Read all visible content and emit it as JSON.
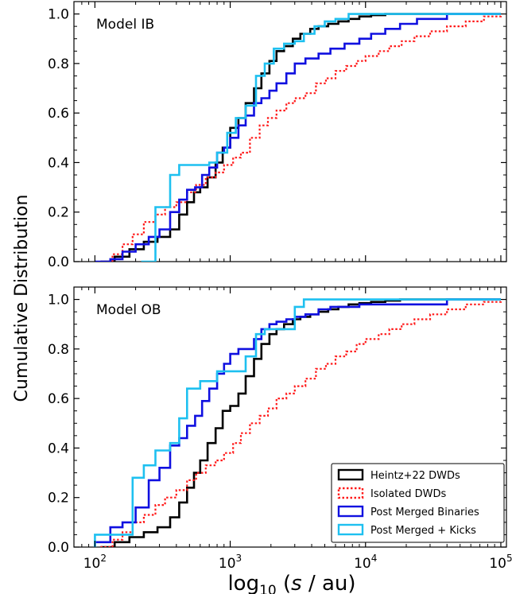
{
  "chart_data": {
    "type": "line",
    "ylabel": "Cumulative Distribution",
    "xlabel_parts": {
      "pre": "log",
      "sub": "10",
      "open": " (",
      "var": "s",
      "post": " / au)"
    },
    "x_scale": "log",
    "xlim": [
      70,
      110000
    ],
    "ylim": [
      0,
      1.05
    ],
    "x_ticks": [
      {
        "value": 100,
        "base": "10",
        "exp": "2"
      },
      {
        "value": 1000,
        "base": "10",
        "exp": "3"
      },
      {
        "value": 10000,
        "base": "10",
        "exp": "4"
      },
      {
        "value": 100000,
        "base": "10",
        "exp": "5"
      }
    ],
    "y_ticks": [
      0.0,
      0.2,
      0.4,
      0.6,
      0.8,
      1.0
    ],
    "y_tick_labels": [
      "0.0",
      "0.2",
      "0.4",
      "0.6",
      "0.8",
      "1.0"
    ],
    "legend": [
      {
        "label": "Heintz+22 DWDs",
        "color": "#000000",
        "dash": "solid"
      },
      {
        "label": "Isolated DWDs",
        "color": "#ff1a1a",
        "dash": "dotted"
      },
      {
        "label": "Post Merged Binaries",
        "color": "#1010e0",
        "dash": "solid"
      },
      {
        "label": "Post Merged + Kicks",
        "color": "#1ec0f0",
        "dash": "solid"
      }
    ],
    "panels": [
      {
        "label": "Model IB",
        "series": [
          {
            "name": "Heintz+22 DWDs",
            "x": [
              110,
              140,
              180,
              230,
              290,
              360,
              420,
              480,
              540,
              600,
              680,
              780,
              880,
              1000,
              1150,
              1300,
              1500,
              1700,
              1950,
              2200,
              2500,
              2900,
              3300,
              3900,
              4500,
              5300,
              6300,
              7500,
              9000,
              11000,
              14000,
              18000,
              25000,
              40000,
              100000
            ],
            "y": [
              0.0,
              0.02,
              0.05,
              0.08,
              0.1,
              0.13,
              0.19,
              0.24,
              0.28,
              0.3,
              0.34,
              0.4,
              0.46,
              0.54,
              0.58,
              0.64,
              0.7,
              0.76,
              0.81,
              0.85,
              0.87,
              0.9,
              0.92,
              0.94,
              0.95,
              0.96,
              0.97,
              0.98,
              0.99,
              0.995,
              1.0,
              1.0,
              1.0,
              1.0,
              1.0
            ]
          },
          {
            "name": "Isolated DWDs",
            "x": [
              110,
              135,
              160,
              190,
              230,
              280,
              330,
              400,
              480,
              560,
              660,
              780,
              900,
              1050,
              1200,
              1400,
              1650,
              1900,
              2200,
              2600,
              3000,
              3600,
              4300,
              5100,
              6000,
              7200,
              8600,
              10000,
              12500,
              15000,
              18500,
              23000,
              30000,
              40000,
              55000,
              75000,
              100000
            ],
            "y": [
              0.0,
              0.03,
              0.07,
              0.11,
              0.16,
              0.19,
              0.22,
              0.24,
              0.28,
              0.31,
              0.34,
              0.36,
              0.39,
              0.42,
              0.44,
              0.5,
              0.55,
              0.58,
              0.61,
              0.64,
              0.66,
              0.68,
              0.72,
              0.74,
              0.77,
              0.79,
              0.81,
              0.83,
              0.85,
              0.87,
              0.89,
              0.91,
              0.93,
              0.95,
              0.97,
              0.99,
              1.0
            ]
          },
          {
            "name": "Post Merged Binaries",
            "x": [
              100,
              130,
              160,
              200,
              250,
              300,
              360,
              420,
              480,
              550,
              620,
              700,
              800,
              900,
              1000,
              1150,
              1300,
              1500,
              1700,
              1950,
              2200,
              2600,
              3000,
              3600,
              4500,
              5500,
              7000,
              9000,
              11000,
              14000,
              18000,
              24000,
              40000,
              100000
            ],
            "y": [
              0.0,
              0.01,
              0.04,
              0.07,
              0.1,
              0.13,
              0.2,
              0.25,
              0.29,
              0.3,
              0.35,
              0.38,
              0.44,
              0.46,
              0.5,
              0.55,
              0.59,
              0.64,
              0.66,
              0.69,
              0.72,
              0.76,
              0.8,
              0.82,
              0.84,
              0.86,
              0.88,
              0.9,
              0.92,
              0.94,
              0.96,
              0.98,
              1.0,
              1.0
            ]
          },
          {
            "name": "Post Merged + Kicks",
            "x": [
              220,
              280,
              360,
              420,
              480,
              600,
              700,
              800,
              950,
              1100,
              1300,
              1550,
              1800,
              2100,
              2500,
              3000,
              3500,
              4200,
              5000,
              6000,
              7500,
              9000,
              12000,
              18000,
              30000,
              100000
            ],
            "y": [
              0.0,
              0.22,
              0.35,
              0.39,
              0.39,
              0.39,
              0.4,
              0.44,
              0.52,
              0.58,
              0.63,
              0.75,
              0.8,
              0.86,
              0.88,
              0.89,
              0.92,
              0.95,
              0.97,
              0.98,
              1.0,
              1.0,
              1.0,
              1.0,
              1.0,
              1.0
            ]
          }
        ]
      },
      {
        "label": "Model OB",
        "series": [
          {
            "name": "Heintz+22 DWDs",
            "x": [
              110,
              140,
              180,
              230,
              290,
              360,
              420,
              480,
              540,
              600,
              680,
              780,
              880,
              1000,
              1150,
              1300,
              1500,
              1700,
              1950,
              2200,
              2500,
              2900,
              3300,
              3900,
              4500,
              5300,
              6300,
              7500,
              9000,
              11000,
              14000,
              18000,
              25000,
              40000,
              100000
            ],
            "y": [
              0.0,
              0.02,
              0.04,
              0.06,
              0.08,
              0.12,
              0.18,
              0.24,
              0.3,
              0.35,
              0.42,
              0.48,
              0.55,
              0.57,
              0.62,
              0.69,
              0.76,
              0.82,
              0.86,
              0.88,
              0.9,
              0.92,
              0.93,
              0.94,
              0.95,
              0.96,
              0.97,
              0.98,
              0.985,
              0.99,
              0.995,
              1.0,
              1.0,
              1.0,
              1.0
            ]
          },
          {
            "name": "Isolated DWDs",
            "x": [
              110,
              135,
              160,
              190,
              230,
              280,
              330,
              400,
              480,
              560,
              660,
              780,
              900,
              1050,
              1200,
              1400,
              1650,
              1900,
              2200,
              2600,
              3000,
              3600,
              4300,
              5100,
              6000,
              7200,
              8600,
              10000,
              12500,
              15000,
              18500,
              23000,
              30000,
              40000,
              55000,
              75000,
              100000
            ],
            "y": [
              0.0,
              0.03,
              0.06,
              0.1,
              0.13,
              0.17,
              0.2,
              0.23,
              0.27,
              0.3,
              0.33,
              0.35,
              0.38,
              0.42,
              0.46,
              0.5,
              0.53,
              0.56,
              0.6,
              0.62,
              0.65,
              0.68,
              0.72,
              0.74,
              0.77,
              0.79,
              0.82,
              0.84,
              0.86,
              0.88,
              0.9,
              0.92,
              0.94,
              0.96,
              0.98,
              0.99,
              1.0
            ]
          },
          {
            "name": "Post Merged Binaries",
            "x": [
              100,
              130,
              160,
              200,
              250,
              300,
              360,
              420,
              480,
              550,
              620,
              700,
              800,
              900,
              1000,
              1150,
              1300,
              1500,
              1700,
              1950,
              2200,
              2600,
              3000,
              3600,
              4500,
              5500,
              7000,
              9000,
              11000,
              14000,
              18000,
              24000,
              40000,
              100000
            ],
            "y": [
              0.02,
              0.08,
              0.1,
              0.16,
              0.27,
              0.32,
              0.41,
              0.44,
              0.49,
              0.53,
              0.59,
              0.64,
              0.7,
              0.74,
              0.78,
              0.8,
              0.8,
              0.84,
              0.88,
              0.9,
              0.91,
              0.92,
              0.93,
              0.94,
              0.96,
              0.97,
              0.97,
              0.98,
              0.98,
              0.98,
              0.98,
              0.98,
              1.0,
              1.0
            ]
          },
          {
            "name": "Post Merged + Kicks",
            "x": [
              100,
              190,
              230,
              280,
              360,
              420,
              480,
              600,
              700,
              800,
              950,
              1100,
              1300,
              1550,
              1800,
              2100,
              2500,
              3000,
              3500,
              4000,
              5000,
              6000,
              7500,
              9000,
              12000,
              18000,
              30000,
              100000
            ],
            "y": [
              0.05,
              0.28,
              0.33,
              0.39,
              0.42,
              0.52,
              0.64,
              0.67,
              0.67,
              0.71,
              0.71,
              0.71,
              0.77,
              0.86,
              0.88,
              0.88,
              0.88,
              0.97,
              1.0,
              1.0,
              1.0,
              1.0,
              1.0,
              1.0,
              1.0,
              1.0,
              1.0,
              1.0
            ]
          }
        ]
      }
    ]
  }
}
